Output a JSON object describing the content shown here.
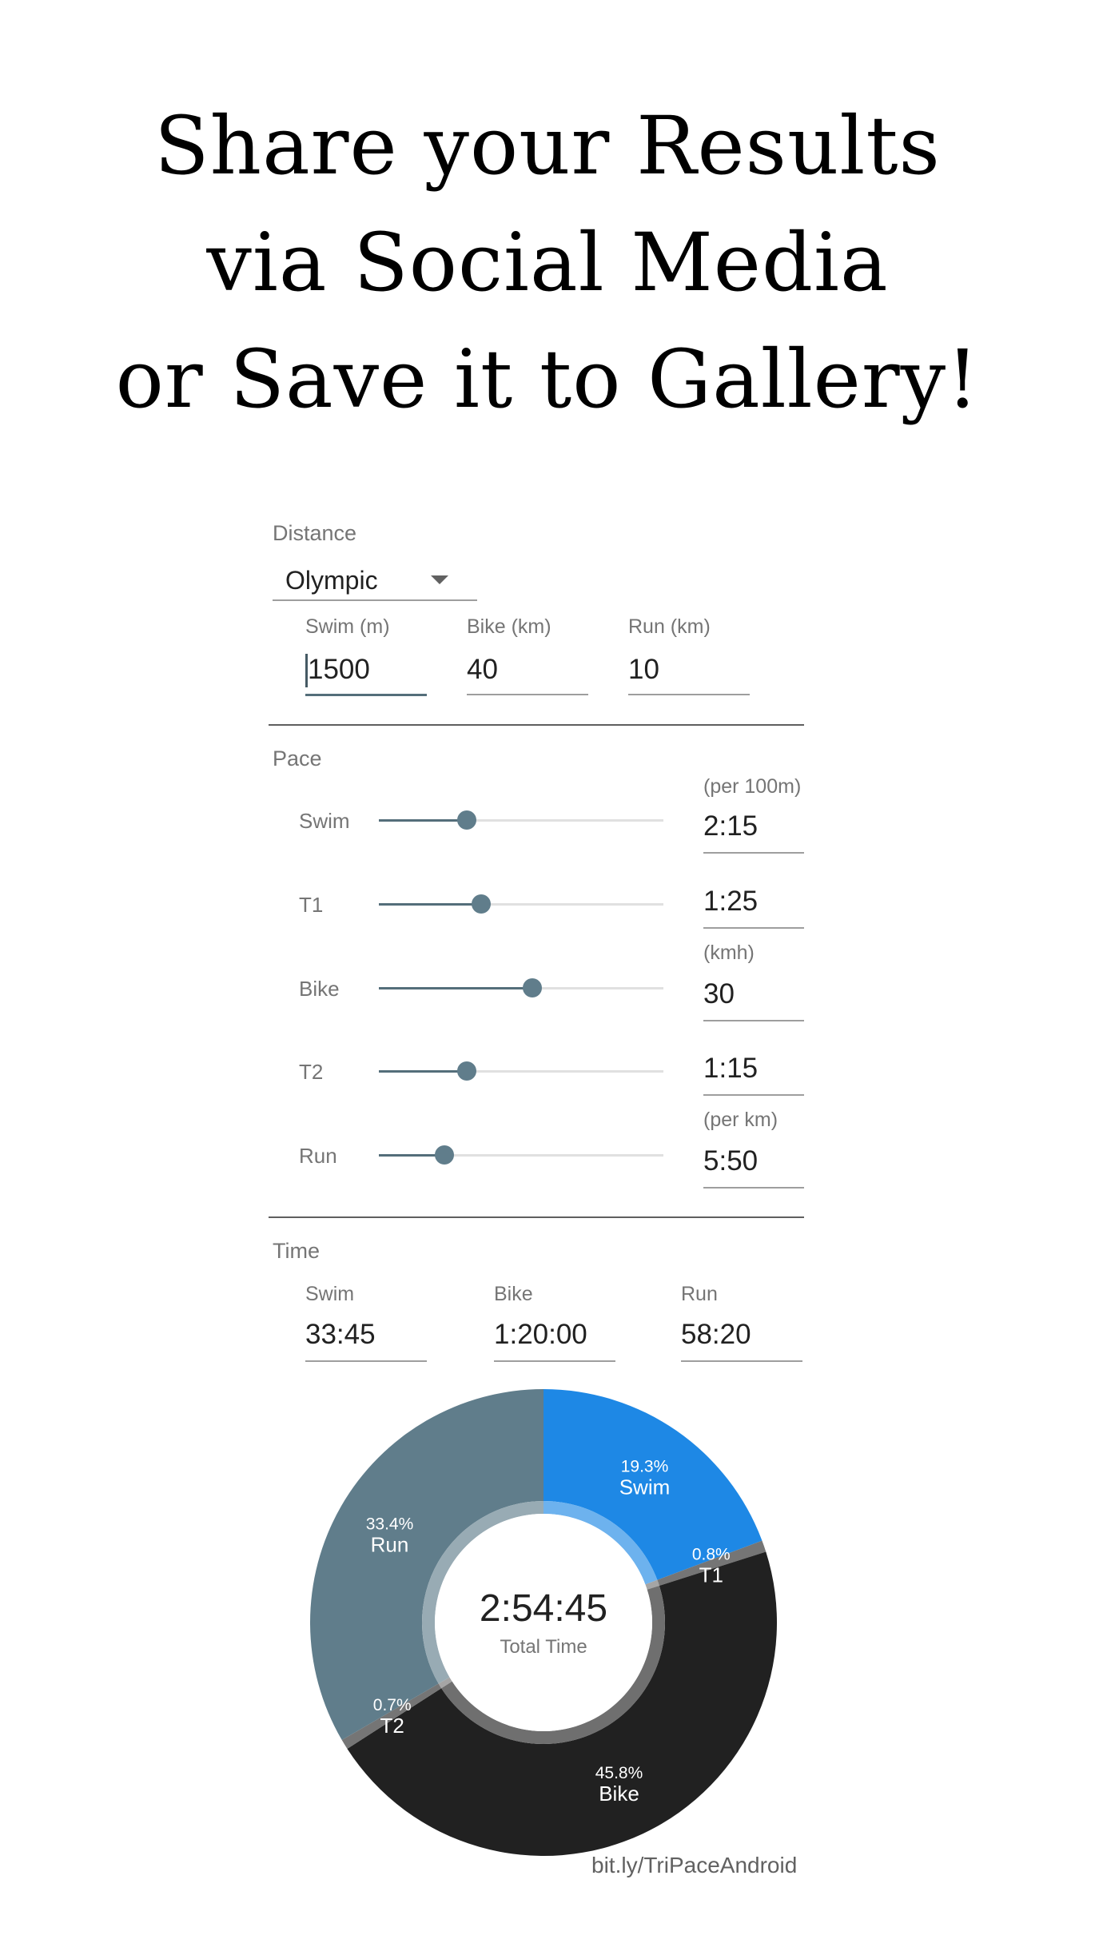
{
  "headline": [
    "Share your Results",
    "via Social Media",
    "or Save it to Gallery!"
  ],
  "distance": {
    "label": "Distance",
    "selected": "Olympic",
    "fields": [
      {
        "label": "Swim (m)",
        "value": "1500"
      },
      {
        "label": "Bike (km)",
        "value": "40"
      },
      {
        "label": "Run (km)",
        "value": "10"
      }
    ]
  },
  "pace": {
    "label": "Pace",
    "rows": [
      {
        "name": "Swim",
        "unit": "(per 100m)",
        "value": "2:15",
        "slider_fraction": 0.31
      },
      {
        "name": "T1",
        "unit": "",
        "value": "1:25",
        "slider_fraction": 0.36
      },
      {
        "name": "Bike",
        "unit": "(kmh)",
        "value": "30",
        "slider_fraction": 0.54
      },
      {
        "name": "T2",
        "unit": "",
        "value": "1:15",
        "slider_fraction": 0.31
      },
      {
        "name": "Run",
        "unit": "(per km)",
        "value": "5:50",
        "slider_fraction": 0.23
      }
    ]
  },
  "time": {
    "label": "Time",
    "fields": [
      {
        "label": "Swim",
        "value": "33:45"
      },
      {
        "label": "Bike",
        "value": "1:20:00"
      },
      {
        "label": "Run",
        "value": "58:20"
      }
    ]
  },
  "chart_data": {
    "type": "pie",
    "center_value": "2:54:45",
    "center_label": "Total Time",
    "slices": [
      {
        "name": "Swim",
        "percent": 19.3,
        "label": "19.3%",
        "color": "#1e88e5"
      },
      {
        "name": "T1",
        "percent": 0.8,
        "label": "0.8%",
        "color": "#757575"
      },
      {
        "name": "Bike",
        "percent": 45.8,
        "label": "45.8%",
        "color": "#212121"
      },
      {
        "name": "T2",
        "percent": 0.7,
        "label": "0.7%",
        "color": "#757575"
      },
      {
        "name": "Run",
        "percent": 33.4,
        "label": "33.4%",
        "color": "#607d8b"
      }
    ]
  },
  "footer": "bit.ly/TriPaceAndroid"
}
